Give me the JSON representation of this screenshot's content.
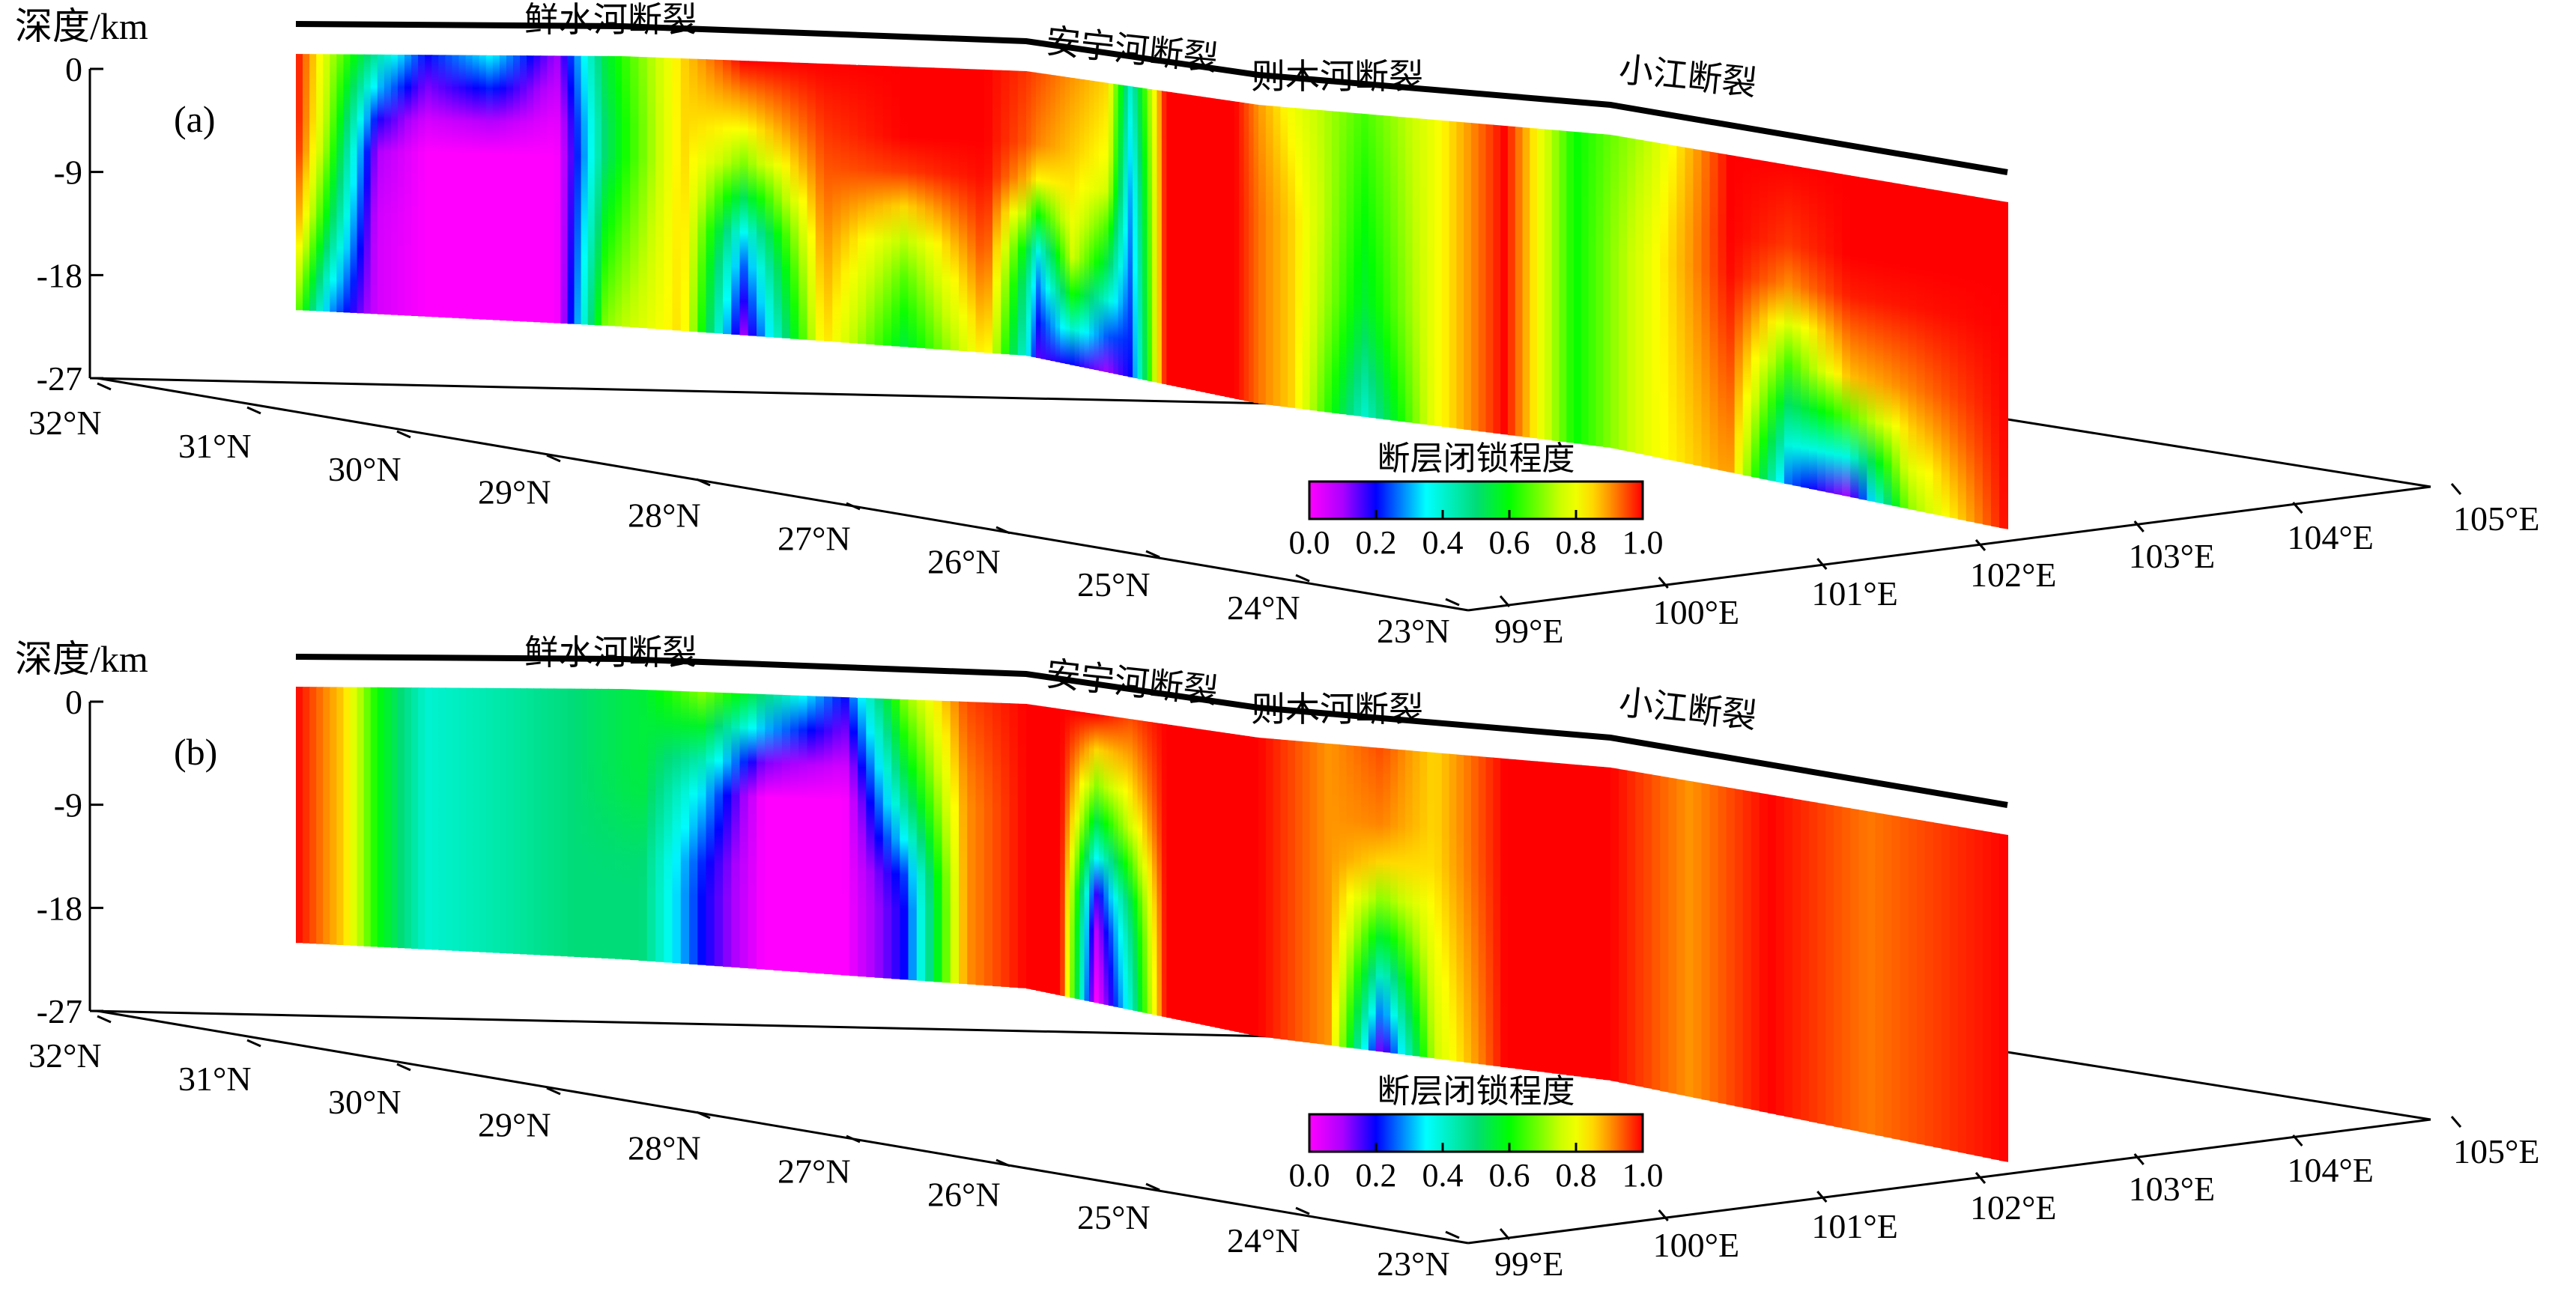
{
  "chart_data": [
    {
      "type": "heatmap",
      "panel_label": "(a)",
      "z_label": "深度/km",
      "depth_ticks": [
        0,
        -9,
        -18,
        -27
      ],
      "lat_ticks": [
        "32°N",
        "31°N",
        "30°N",
        "29°N",
        "28°N",
        "27°N",
        "26°N",
        "25°N",
        "24°N",
        "23°N"
      ],
      "lon_ticks": [
        "99°E",
        "100°E",
        "101°E",
        "102°E",
        "103°E",
        "104°E",
        "105°E"
      ],
      "fault_labels": [
        "鲜水河断裂",
        "安宁河断裂",
        "则木河断裂",
        "小江断裂"
      ],
      "colorbar_title": "断层闭锁程度",
      "colorbar_ticks": [
        "0.0",
        "0.2",
        "0.4",
        "0.6",
        "0.8",
        "1.0"
      ],
      "zlim": [
        -27,
        0
      ],
      "value_range": [
        0,
        1
      ],
      "locking_profile": [
        {
          "along": 0.0,
          "values": [
            1.0,
            1.0,
            0.9,
            0.7
          ]
        },
        {
          "along": 0.02,
          "values": [
            0.75,
            0.7,
            0.55,
            0.3
          ]
        },
        {
          "along": 0.05,
          "values": [
            0.45,
            0.1,
            0.05,
            0.05
          ]
        },
        {
          "along": 0.08,
          "values": [
            0.2,
            0.0,
            0.0,
            0.0
          ]
        },
        {
          "along": 0.12,
          "values": [
            0.35,
            0.0,
            0.0,
            0.0
          ]
        },
        {
          "along": 0.16,
          "values": [
            0.1,
            0.0,
            0.0,
            0.0
          ]
        },
        {
          "along": 0.19,
          "values": [
            0.55,
            0.5,
            0.6,
            0.7
          ]
        },
        {
          "along": 0.23,
          "values": [
            0.85,
            0.85,
            0.85,
            0.85
          ]
        },
        {
          "along": 0.26,
          "values": [
            1.0,
            0.75,
            0.3,
            0.1
          ]
        },
        {
          "along": 0.3,
          "values": [
            1.0,
            0.95,
            0.9,
            0.85
          ]
        },
        {
          "along": 0.34,
          "values": [
            1.0,
            1.0,
            0.7,
            0.55
          ]
        },
        {
          "along": 0.38,
          "values": [
            1.0,
            1.0,
            0.95,
            0.85
          ]
        },
        {
          "along": 0.41,
          "values": [
            0.95,
            0.9,
            0.3,
            0.15
          ]
        },
        {
          "along": 0.44,
          "values": [
            0.9,
            0.85,
            0.75,
            0.2
          ]
        },
        {
          "along": 0.47,
          "values": [
            0.85,
            0.8,
            0.5,
            0.1
          ]
        },
        {
          "along": 0.49,
          "values": [
            0.4,
            0.3,
            0.25,
            0.2
          ]
        },
        {
          "along": 0.52,
          "values": [
            1.0,
            1.0,
            1.0,
            1.0
          ]
        },
        {
          "along": 0.58,
          "values": [
            1.0,
            1.0,
            1.0,
            1.0
          ]
        },
        {
          "along": 0.62,
          "values": [
            0.8,
            0.85,
            0.85,
            0.85
          ]
        },
        {
          "along": 0.66,
          "values": [
            0.65,
            0.6,
            0.55,
            0.4
          ]
        },
        {
          "along": 0.7,
          "values": [
            0.8,
            0.8,
            0.8,
            0.8
          ]
        },
        {
          "along": 0.74,
          "values": [
            1.0,
            1.0,
            1.0,
            1.0
          ]
        },
        {
          "along": 0.78,
          "values": [
            0.6,
            0.6,
            0.6,
            0.6
          ]
        },
        {
          "along": 0.82,
          "values": [
            0.75,
            0.8,
            0.8,
            0.8
          ]
        },
        {
          "along": 0.86,
          "values": [
            1.0,
            1.0,
            0.95,
            0.9
          ]
        },
        {
          "along": 0.89,
          "values": [
            1.0,
            0.95,
            0.6,
            0.25
          ]
        },
        {
          "along": 0.92,
          "values": [
            1.0,
            1.0,
            0.85,
            0.1
          ]
        },
        {
          "along": 0.95,
          "values": [
            1.0,
            1.0,
            0.9,
            0.7
          ]
        },
        {
          "along": 1.0,
          "values": [
            1.0,
            1.0,
            1.0,
            1.0
          ]
        }
      ]
    },
    {
      "type": "heatmap",
      "panel_label": "(b)",
      "z_label": "深度/km",
      "depth_ticks": [
        0,
        -9,
        -18,
        -27
      ],
      "lat_ticks": [
        "32°N",
        "31°N",
        "30°N",
        "29°N",
        "28°N",
        "27°N",
        "26°N",
        "25°N",
        "24°N",
        "23°N"
      ],
      "lon_ticks": [
        "99°E",
        "100°E",
        "101°E",
        "102°E",
        "103°E",
        "104°E",
        "105°E"
      ],
      "fault_labels": [
        "鲜水河断裂",
        "安宁河断裂",
        "则木河断裂",
        "小江断裂"
      ],
      "colorbar_title": "断层闭锁程度",
      "colorbar_ticks": [
        "0.0",
        "0.2",
        "0.4",
        "0.6",
        "0.8",
        "1.0"
      ],
      "zlim": [
        -27,
        0
      ],
      "value_range": [
        0,
        1
      ],
      "locking_profile": [
        {
          "along": 0.0,
          "values": [
            1.0,
            1.0,
            1.0,
            1.0
          ]
        },
        {
          "along": 0.03,
          "values": [
            0.85,
            0.85,
            0.85,
            0.85
          ]
        },
        {
          "along": 0.05,
          "values": [
            0.6,
            0.6,
            0.6,
            0.6
          ]
        },
        {
          "along": 0.08,
          "values": [
            0.4,
            0.4,
            0.4,
            0.4
          ]
        },
        {
          "along": 0.13,
          "values": [
            0.45,
            0.45,
            0.45,
            0.45
          ]
        },
        {
          "along": 0.17,
          "values": [
            0.5,
            0.5,
            0.5,
            0.5
          ]
        },
        {
          "along": 0.21,
          "values": [
            0.55,
            0.55,
            0.5,
            0.5
          ]
        },
        {
          "along": 0.24,
          "values": [
            0.7,
            0.35,
            0.2,
            0.2
          ]
        },
        {
          "along": 0.27,
          "values": [
            0.5,
            0.0,
            0.0,
            0.0
          ]
        },
        {
          "along": 0.31,
          "values": [
            0.2,
            0.0,
            0.0,
            0.0
          ]
        },
        {
          "along": 0.34,
          "values": [
            0.7,
            0.5,
            0.2,
            0.2
          ]
        },
        {
          "along": 0.37,
          "values": [
            0.95,
            0.9,
            0.9,
            0.9
          ]
        },
        {
          "along": 0.4,
          "values": [
            1.0,
            1.0,
            1.0,
            1.0
          ]
        },
        {
          "along": 0.43,
          "values": [
            1.0,
            1.0,
            1.0,
            1.0
          ]
        },
        {
          "along": 0.46,
          "values": [
            1.0,
            0.6,
            0.1,
            0.0
          ]
        },
        {
          "along": 0.49,
          "values": [
            0.95,
            0.8,
            0.5,
            0.4
          ]
        },
        {
          "along": 0.52,
          "values": [
            1.0,
            1.0,
            1.0,
            1.0
          ]
        },
        {
          "along": 0.6,
          "values": [
            1.0,
            1.0,
            1.0,
            1.0
          ]
        },
        {
          "along": 0.64,
          "values": [
            0.9,
            0.9,
            0.9,
            0.9
          ]
        },
        {
          "along": 0.67,
          "values": [
            0.95,
            0.9,
            0.5,
            0.1
          ]
        },
        {
          "along": 0.7,
          "values": [
            0.85,
            0.85,
            0.8,
            0.75
          ]
        },
        {
          "along": 0.74,
          "values": [
            1.0,
            1.0,
            1.0,
            1.0
          ]
        },
        {
          "along": 0.8,
          "values": [
            1.0,
            1.0,
            1.0,
            1.0
          ]
        },
        {
          "along": 0.84,
          "values": [
            0.9,
            0.9,
            0.9,
            0.9
          ]
        },
        {
          "along": 0.88,
          "values": [
            1.0,
            1.0,
            1.0,
            1.0
          ]
        },
        {
          "along": 0.93,
          "values": [
            0.92,
            0.92,
            0.92,
            0.92
          ]
        },
        {
          "along": 1.0,
          "values": [
            1.0,
            1.0,
            1.0,
            1.0
          ]
        }
      ]
    }
  ]
}
